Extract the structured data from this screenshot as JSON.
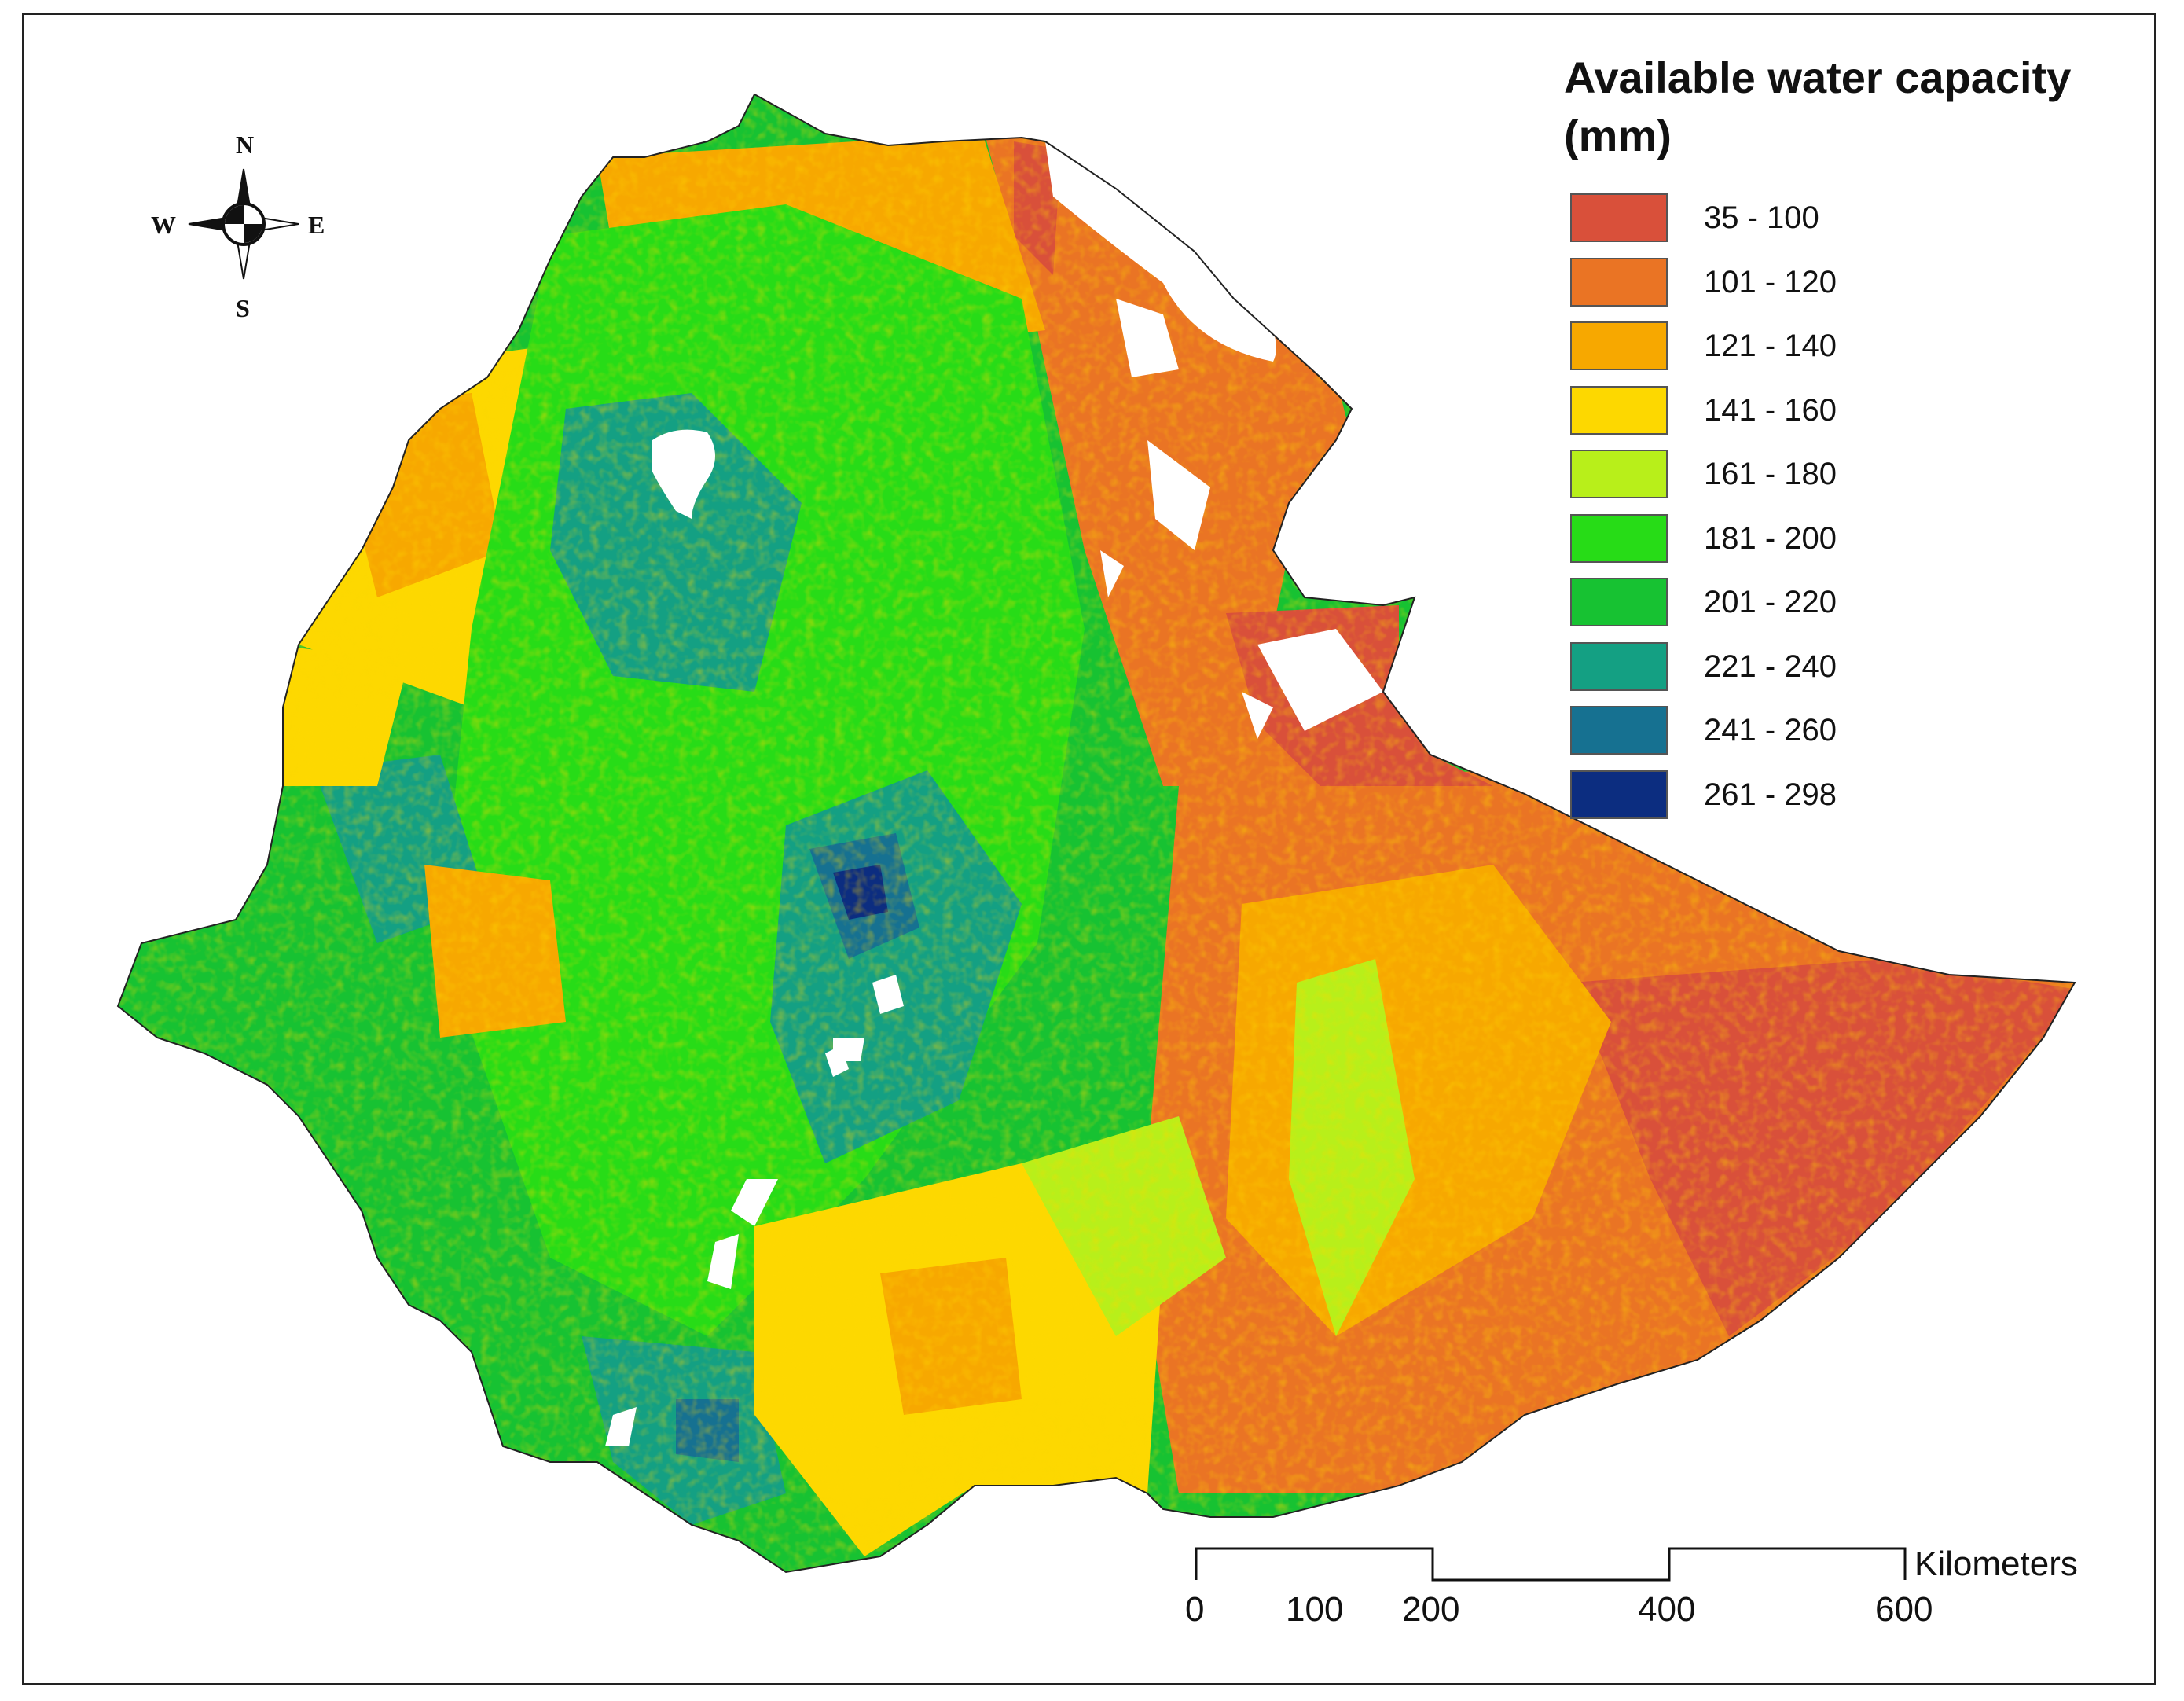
{
  "legend": {
    "title_line1": "Available water capacity",
    "title_line2": "(mm)",
    "classes": [
      {
        "label": "35 - 100",
        "color": "#d9503a"
      },
      {
        "label": "101 - 120",
        "color": "#ea7424"
      },
      {
        "label": "121 - 140",
        "color": "#f7a800"
      },
      {
        "label": "141 - 160",
        "color": "#fdd800"
      },
      {
        "label": "161 - 180",
        "color": "#b8ef1a"
      },
      {
        "label": "181 - 200",
        "color": "#27dc17"
      },
      {
        "label": "201 - 220",
        "color": "#17c232"
      },
      {
        "label": "221 - 240",
        "color": "#14a083"
      },
      {
        "label": "241 - 260",
        "color": "#167191"
      },
      {
        "label": "261 - 298",
        "color": "#0c2d80"
      }
    ]
  },
  "compass": {
    "north": "N",
    "south": "S",
    "east": "E",
    "west": "W"
  },
  "scale_bar": {
    "unit": "Kilometers",
    "ticks": [
      "0",
      "100",
      "200",
      "400",
      "600"
    ]
  }
}
